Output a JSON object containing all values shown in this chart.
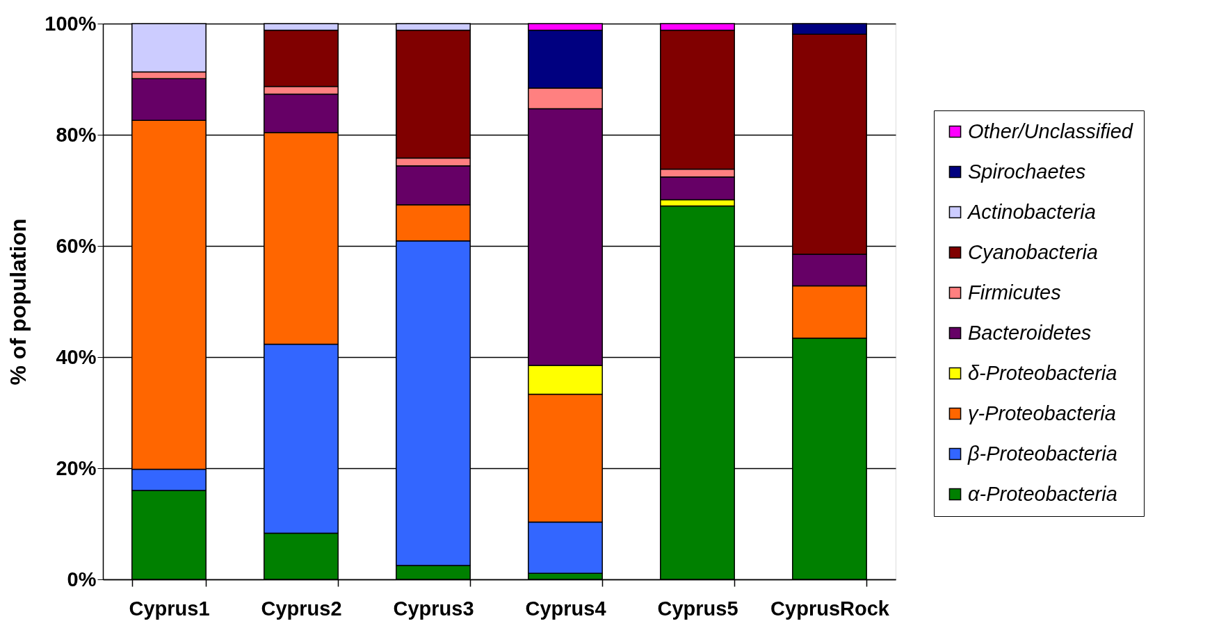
{
  "chart_data": {
    "type": "bar",
    "stacked": true,
    "ylabel": "% of population",
    "categories": [
      "Cyprus1",
      "Cyprus2",
      "Cyprus3",
      "Cyprus4",
      "Cyprus5",
      "CyprusRock"
    ],
    "series": [
      {
        "name": "α-Proteobacteria",
        "color": "#008000",
        "values": [
          16.0,
          8.3,
          2.5,
          1.1,
          67.2,
          43.4
        ]
      },
      {
        "name": "β-Proteobacteria",
        "color": "#3366ff",
        "values": [
          3.8,
          34.0,
          58.4,
          9.2,
          null,
          null
        ]
      },
      {
        "name": "γ-Proteobacteria",
        "color": "#ff6600",
        "values": [
          62.8,
          38.1,
          6.5,
          23.0,
          null,
          9.4
        ]
      },
      {
        "name": "δ-Proteobacteria",
        "color": "#ffff00",
        "values": [
          null,
          null,
          null,
          5.2,
          1.1,
          null
        ]
      },
      {
        "name": "Bacteroidetes",
        "color": "#660066",
        "values": [
          7.5,
          6.9,
          7.0,
          46.2,
          4.1,
          5.7
        ]
      },
      {
        "name": "Firmicutes",
        "color": "#ff8080",
        "values": [
          1.2,
          1.4,
          1.4,
          3.7,
          1.4,
          null
        ]
      },
      {
        "name": "Cyanobacteria",
        "color": "#800000",
        "values": [
          null,
          10.1,
          23.0,
          null,
          25.0,
          39.6
        ]
      },
      {
        "name": "Actinobacteria",
        "color": "#ccccff",
        "values": [
          8.7,
          1.2,
          1.2,
          null,
          null,
          null
        ]
      },
      {
        "name": "Spirochaetes",
        "color": "#000080",
        "values": [
          null,
          null,
          null,
          10.4,
          null,
          1.9
        ]
      },
      {
        "name": "Other/Unclassified",
        "color": "#ff00ff",
        "values": [
          null,
          null,
          null,
          1.2,
          1.2,
          null
        ]
      }
    ],
    "ylim": [
      0,
      100
    ],
    "yticks": [
      {
        "value": 0,
        "label": "0%"
      },
      {
        "value": 20,
        "label": "20%"
      },
      {
        "value": 40,
        "label": "40%"
      },
      {
        "value": 60,
        "label": "60%"
      },
      {
        "value": 80,
        "label": "80%"
      },
      {
        "value": 100,
        "label": "100%"
      }
    ],
    "grid": "y",
    "legend": "right"
  }
}
